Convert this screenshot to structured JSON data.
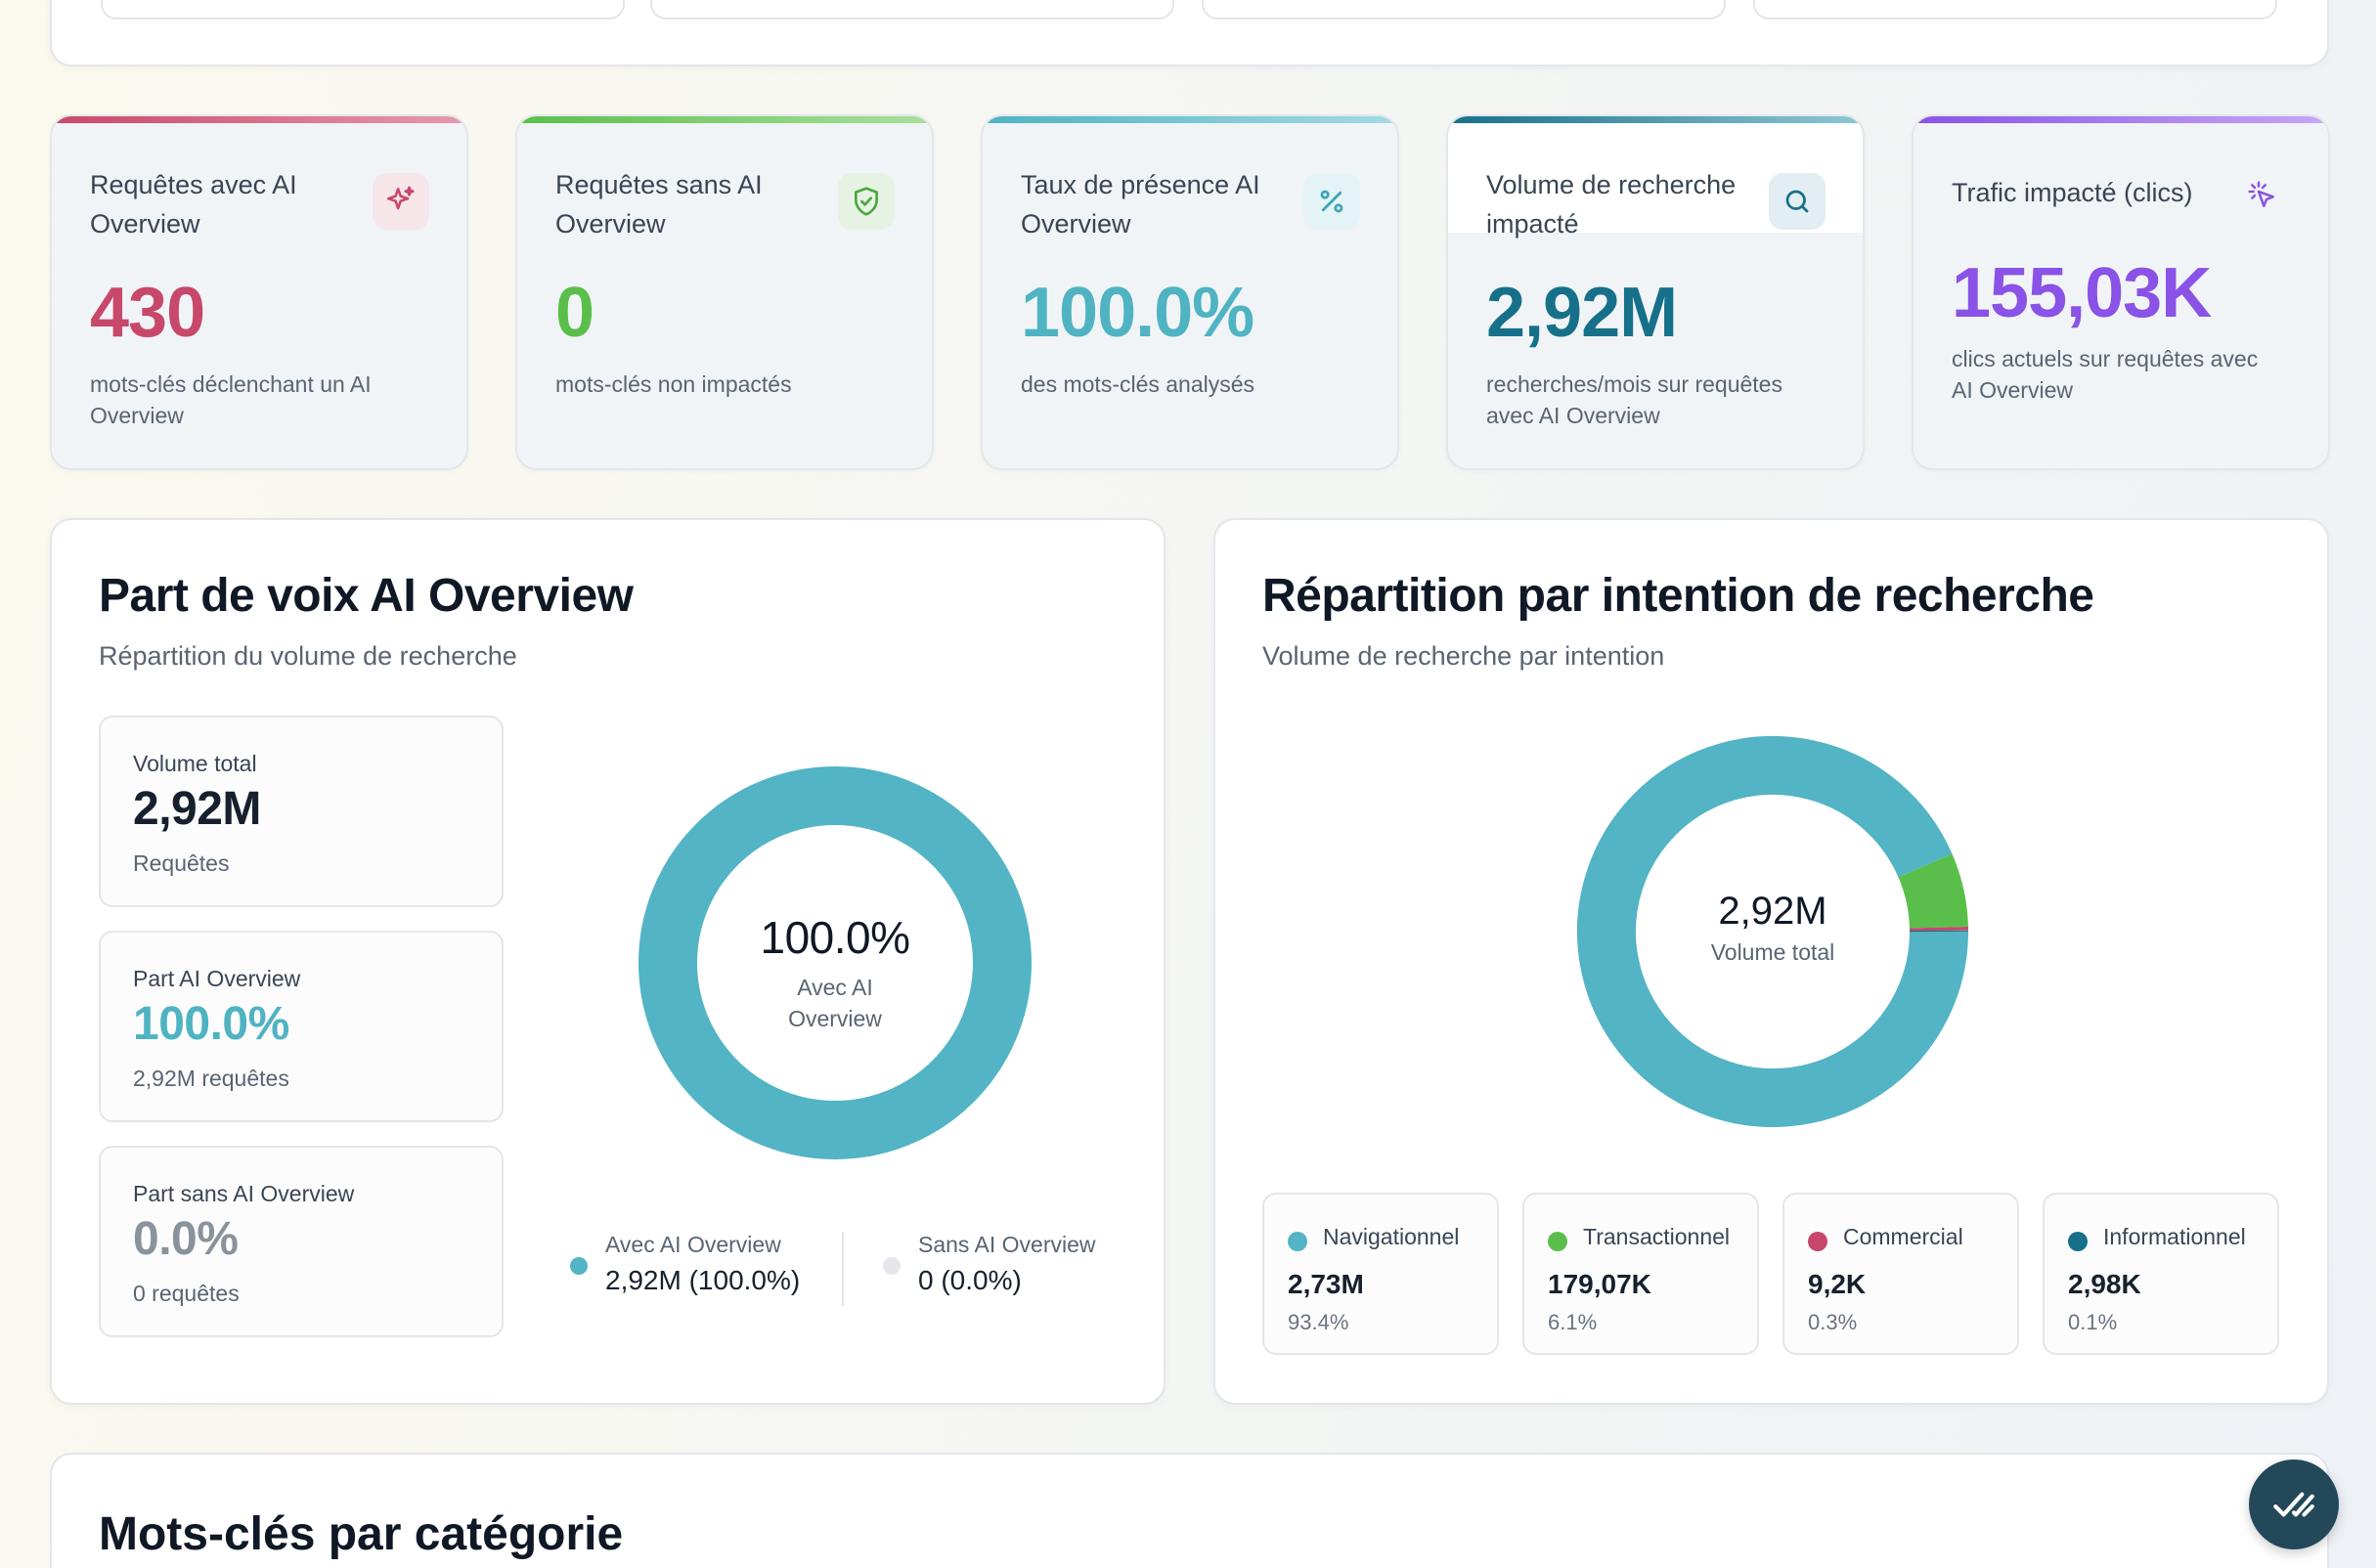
{
  "metrics": [
    {
      "title": "Requêtes avec AI Overview",
      "value": "430",
      "sub": "mots-clés déclenchant un AI Overview",
      "color": "#c7486a",
      "icon": "sparkles-icon"
    },
    {
      "title": "Requêtes sans AI Overview",
      "value": "0",
      "sub": "mots-clés non impactés",
      "color": "#5abf4a",
      "icon": "shield-check-icon"
    },
    {
      "title": "Taux de présence AI Overview",
      "value": "100.0%",
      "sub": "des mots-clés analysés",
      "color": "#4fb3c2",
      "icon": "percent-icon"
    },
    {
      "title": "Volume de recherche impacté",
      "value": "2,92M",
      "sub": "recherches/mois sur requêtes avec AI Overview",
      "color": "#17708a",
      "icon": "search-icon"
    },
    {
      "title": "Trafic impacté (clics)",
      "value": "155,03K",
      "sub": "clics actuels sur requêtes avec AI Overview",
      "color": "#8a52e6",
      "icon": "cursor-click-icon"
    }
  ],
  "share_panel": {
    "title": "Part de voix AI Overview",
    "subtitle": "Répartition du volume de recherche",
    "stats": [
      {
        "label": "Volume total",
        "value": "2,92M",
        "note": "Requêtes",
        "color": "#17202c"
      },
      {
        "label": "Part AI Overview",
        "value": "100.0%",
        "note": "2,92M requêtes",
        "color": "#4fb3c2"
      },
      {
        "label": "Part sans AI Overview",
        "value": "0.0%",
        "note": "0 requêtes",
        "color": "#8a929c"
      }
    ],
    "donut_center_value": "100.0%",
    "donut_center_label": "Avec AI Overview",
    "legend": [
      {
        "title": "Avec AI Overview",
        "value": "2,92M (100.0%)",
        "color": "#52b4c4"
      },
      {
        "title": "Sans AI Overview",
        "value": "0 (0.0%)",
        "color": "#e4e6ea"
      }
    ]
  },
  "intent_panel": {
    "title": "Répartition par intention de recherche",
    "subtitle": "Volume de recherche par intention",
    "donut_center_value": "2,92M",
    "donut_center_label": "Volume total",
    "intents": [
      {
        "name": "Navigationnel",
        "value": "2,73M",
        "pct": "93.4%",
        "share": 93.4,
        "color": "#52b4c4"
      },
      {
        "name": "Transactionnel",
        "value": "179,07K",
        "pct": "6.1%",
        "share": 6.1,
        "color": "#5abf4a"
      },
      {
        "name": "Commercial",
        "value": "9,2K",
        "pct": "0.3%",
        "share": 0.3,
        "color": "#c7486a"
      },
      {
        "name": "Informationnel",
        "value": "2,98K",
        "pct": "0.1%",
        "share": 0.1,
        "color": "#17708a"
      }
    ]
  },
  "category_section": {
    "title": "Mots-clés par catégorie"
  }
}
